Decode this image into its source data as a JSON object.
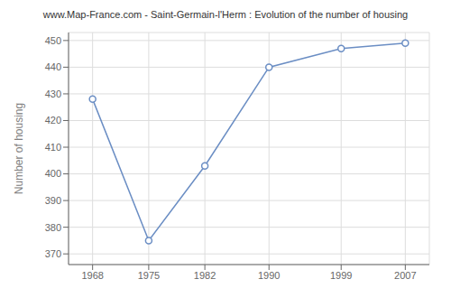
{
  "chart_data": {
    "type": "line",
    "title": "www.Map-France.com - Saint-Germain-l'Herm : Evolution of the number of housing",
    "ylabel": "Number of housing",
    "x": [
      1968,
      1975,
      1982,
      1990,
      1999,
      2007
    ],
    "values": [
      428,
      375,
      403,
      440,
      447,
      449
    ],
    "color": "#6b8ec4",
    "marker": "circle",
    "xlim": [
      1965,
      2010
    ],
    "xticks": [
      1968,
      1975,
      1982,
      1990,
      1999,
      2007
    ],
    "ylim": [
      366,
      453
    ],
    "yticks": [
      370,
      380,
      390,
      400,
      410,
      420,
      430,
      440,
      450
    ],
    "grid": true
  }
}
